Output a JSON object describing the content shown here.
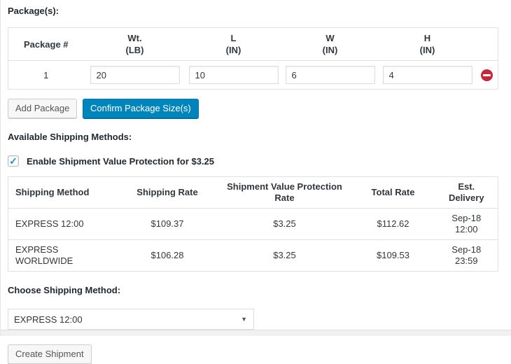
{
  "packages_section": {
    "title": "Package(s):",
    "table": {
      "headers": [
        {
          "label": "Package #",
          "sub": ""
        },
        {
          "label": "Wt.",
          "sub": "(LB)"
        },
        {
          "label": "L",
          "sub": "(IN)"
        },
        {
          "label": "W",
          "sub": "(IN)"
        },
        {
          "label": "H",
          "sub": "(IN)"
        }
      ],
      "row": {
        "number": "1",
        "weight": "20",
        "length": "10",
        "width": "6",
        "height": "4"
      }
    },
    "add_button": "Add Package",
    "confirm_button": "Confirm Package Size(s)"
  },
  "shipping_section": {
    "title": "Available Shipping Methods:",
    "insurance": {
      "label": "Enable Shipment Value Protection for $3.25",
      "checked": true
    },
    "table": {
      "headers": [
        "Shipping Method",
        "Shipping Rate",
        "Shipment Value Protection Rate",
        "Total Rate",
        "Est. Delivery"
      ],
      "rows": [
        [
          "EXPRESS 12:00",
          "$109.37",
          "$3.25",
          "$112.62",
          "Sep-18 12:00"
        ],
        [
          "EXPRESS WORLDWIDE",
          "$106.28",
          "$3.25",
          "$109.53",
          "Sep-18 23:59"
        ]
      ]
    }
  },
  "choose_section": {
    "title": "Choose Shipping Method:",
    "selected_method": "EXPRESS 12:00",
    "create_button": "Create Shipment"
  },
  "icons": {
    "checkmark": "✓",
    "dropdown_arrow": "▼"
  },
  "colors": {
    "primary_button": "#0085ba",
    "remove_icon": "#c2293a",
    "checkmark": "#1e8cbe",
    "border": "#e1e1e1",
    "text": "#32373c"
  }
}
